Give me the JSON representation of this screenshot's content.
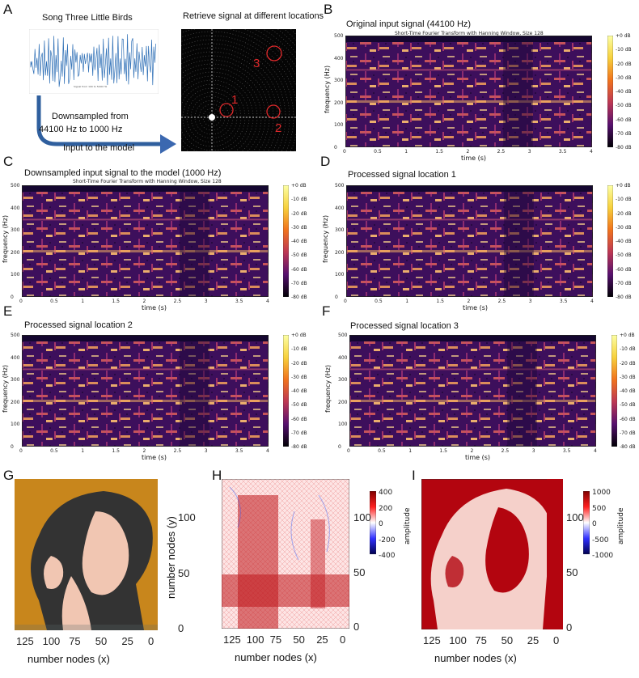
{
  "panels": {
    "A": {
      "letter": "A",
      "song_title": "Song Three Little Birds",
      "retrieve_title": "Retrieve signal at different locations",
      "waveform_legend": "Signal from 100 to 5000 Hz",
      "downsample_text_1": "Downsampled from",
      "downsample_text_2": "44100 Hz to 1000 Hz",
      "input_text": "Input to the model",
      "location_labels": [
        "1",
        "2",
        "3"
      ]
    },
    "B": {
      "letter": "B",
      "title": "Original input signal (44100 Hz)",
      "subtitle": "Short-Time Fourier Transform with Hanning Window, Size 128"
    },
    "C": {
      "letter": "C",
      "title": "Downsampled input signal  to the model (1000 Hz)",
      "subtitle": "Short-Time Fourier Transform with Hanning Window, Size 128"
    },
    "D": {
      "letter": "D",
      "title": "Processed signal location 1",
      "subtitle": ""
    },
    "E": {
      "letter": "E",
      "title": "Processed signal location 2",
      "subtitle": ""
    },
    "F": {
      "letter": "F",
      "title": "Processed signal location 3",
      "subtitle": ""
    },
    "G": {
      "letter": "G"
    },
    "H": {
      "letter": "H"
    },
    "I": {
      "letter": "I"
    }
  },
  "spectrogram_axes": {
    "xlabel": "time (s)",
    "ylabel": "frequency (Hz)",
    "xticks": [
      "0",
      "0.5",
      "1",
      "1.5",
      "2",
      "2.5",
      "3",
      "3.5",
      "4"
    ],
    "yticks": [
      "0",
      "100",
      "200",
      "300",
      "400",
      "500"
    ],
    "colorbar_ticks": [
      "+0 dB",
      "-10 dB",
      "-20 dB",
      "-30 dB",
      "-40 dB",
      "-50 dB",
      "-60 dB",
      "-70 dB",
      "-80 dB"
    ]
  },
  "node_axes": {
    "xlabel": "number nodes (x)",
    "ylabel": "number nodes (y)",
    "xticks": [
      "125",
      "100",
      "75",
      "50",
      "25",
      "0"
    ],
    "yticks": [
      "0",
      "50",
      "100"
    ]
  },
  "colorbars": {
    "H": {
      "label": "amplitude",
      "ticks": [
        "400",
        "200",
        "0",
        "-200",
        "-400"
      ]
    },
    "I": {
      "label": "amplitude",
      "ticks": [
        "1000",
        "500",
        "0",
        "-500",
        "-1000"
      ]
    }
  },
  "colors": {
    "inferno_bright": "#fcd58a",
    "inferno_mid": "#c5407b",
    "inferno_dark": "#2a0b4a",
    "arrow_blue": "#3b68b0",
    "waveform_blue": "#2e6fb6",
    "orange_bg": "#c8861c",
    "amp_red": "#b3050f"
  }
}
